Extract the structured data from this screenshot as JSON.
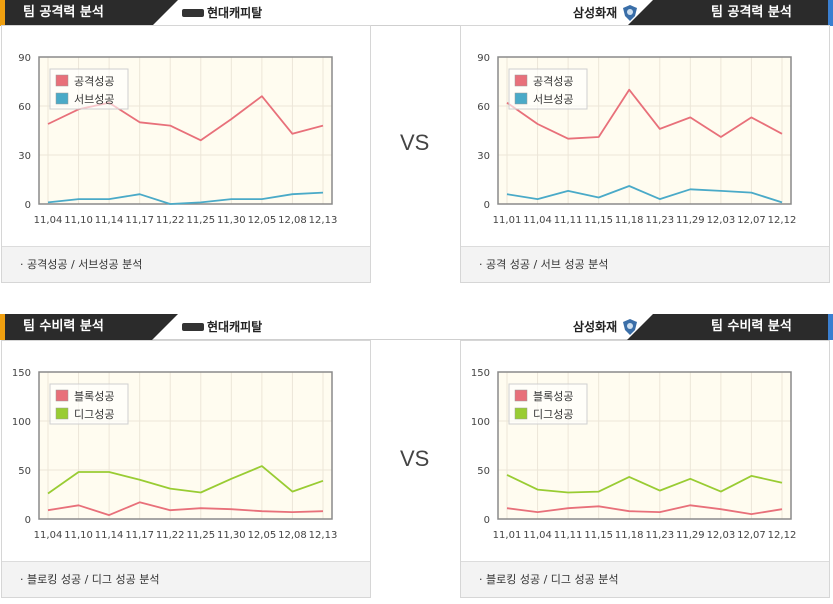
{
  "header_top": {
    "left_tab": "팀 공격력 분석",
    "left_team": "현대캐피탈",
    "right_team": "삼성화재",
    "right_tab": "팀 공격력 분석"
  },
  "header_bottom": {
    "left_tab": "팀 수비력 분석",
    "left_team": "현대캐피탈",
    "right_team": "삼성화재",
    "right_tab": "팀 수비력 분석"
  },
  "vs_label": "VS",
  "colors": {
    "red": "#e8707a",
    "teal": "#4aaac8",
    "green": "#99cc33",
    "plot_bg": "#fffcf0"
  },
  "panels": [
    {
      "footer": "· 공격성공 / 서브성공 분석"
    },
    {
      "footer": "· 공격 성공 / 서브 성공 분석"
    },
    {
      "footer": "· 블로킹 성공 / 디그 성공 분석"
    },
    {
      "footer": "· 블로킹 성공 / 디그 성공 분석"
    }
  ],
  "chart_data": [
    {
      "type": "line",
      "categories": [
        "11,04",
        "11,10",
        "11,14",
        "11,17",
        "11,22",
        "11,25",
        "11,30",
        "12,05",
        "12,08",
        "12,13"
      ],
      "ylim": [
        0,
        90
      ],
      "yticks": [
        0,
        30,
        60,
        90
      ],
      "legend_position": "top-left",
      "series": [
        {
          "name": "공격성공",
          "color": "#e8707a",
          "values": [
            49,
            58,
            62,
            50,
            48,
            39,
            52,
            66,
            43,
            48
          ]
        },
        {
          "name": "서브성공",
          "color": "#4aaac8",
          "values": [
            1,
            3,
            3,
            6,
            0,
            1,
            3,
            3,
            6,
            7
          ]
        }
      ]
    },
    {
      "type": "line",
      "categories": [
        "11,01",
        "11,04",
        "11,11",
        "11,15",
        "11,18",
        "11,23",
        "11,29",
        "12,03",
        "12,07",
        "12,12"
      ],
      "ylim": [
        0,
        90
      ],
      "yticks": [
        0,
        30,
        60,
        90
      ],
      "legend_position": "top-left",
      "series": [
        {
          "name": "공격성공",
          "color": "#e8707a",
          "values": [
            62,
            49,
            40,
            41,
            70,
            46,
            53,
            41,
            53,
            43
          ]
        },
        {
          "name": "서브성공",
          "color": "#4aaac8",
          "values": [
            6,
            3,
            8,
            4,
            11,
            3,
            9,
            8,
            7,
            1
          ]
        }
      ]
    },
    {
      "type": "line",
      "categories": [
        "11,04",
        "11,10",
        "11,14",
        "11,17",
        "11,22",
        "11,25",
        "11,30",
        "12,05",
        "12,08",
        "12,13"
      ],
      "ylim": [
        0,
        150
      ],
      "yticks": [
        0,
        50,
        100,
        150
      ],
      "legend_position": "top-left",
      "series": [
        {
          "name": "블록성공",
          "color": "#e8707a",
          "values": [
            9,
            14,
            4,
            17,
            9,
            11,
            10,
            8,
            7,
            8
          ]
        },
        {
          "name": "디그성공",
          "color": "#99cc33",
          "values": [
            26,
            48,
            48,
            40,
            31,
            27,
            41,
            54,
            28,
            39
          ]
        }
      ]
    },
    {
      "type": "line",
      "categories": [
        "11,01",
        "11,04",
        "11,11",
        "11,15",
        "11,18",
        "11,23",
        "11,29",
        "12,03",
        "12,07",
        "12,12"
      ],
      "ylim": [
        0,
        150
      ],
      "yticks": [
        0,
        50,
        100,
        150
      ],
      "legend_position": "top-left",
      "series": [
        {
          "name": "블록성공",
          "color": "#e8707a",
          "values": [
            11,
            7,
            11,
            13,
            8,
            7,
            14,
            10,
            5,
            10
          ]
        },
        {
          "name": "디그성공",
          "color": "#99cc33",
          "values": [
            45,
            30,
            27,
            28,
            43,
            29,
            41,
            28,
            44,
            37
          ]
        }
      ]
    }
  ]
}
